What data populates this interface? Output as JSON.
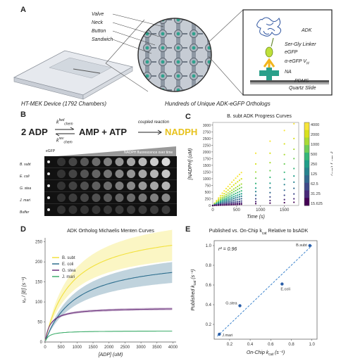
{
  "panels": {
    "A": "A",
    "B": "B",
    "C": "C",
    "D": "D",
    "E": "E"
  },
  "panelA": {
    "device_caption": "HT-MEK Device (1792 Chambers)",
    "orthologs_caption": "Hundreds of Unique ADK-eGFP Orthologs",
    "callouts": [
      "Valve",
      "Neck",
      "Button",
      "Sandwich"
    ],
    "stack_labels": [
      "ADK",
      "Ser-Gly Linker",
      "eGFP",
      "α-eGFP V",
      "NA",
      "PDMS",
      "Quartz Slide"
    ],
    "stack_sub": "H"
  },
  "panelB": {
    "reaction_left": "2 ADP",
    "reaction_right": "AMP + ATP",
    "k_fwd": "k",
    "k_fwd_sup": "fwd",
    "k_fwd_sub": "chem",
    "k_rev": "k",
    "k_rev_sup": "rev",
    "k_rev_sub": "chem",
    "coupled": "coupled reaction",
    "product": "NADPH",
    "egfp": "eGFP",
    "time_label": "NADPH fluorescence over time",
    "rows": [
      "B. subt",
      "E. coli",
      "G. stea",
      "J. mari",
      "Buffer"
    ]
  },
  "chart_data": [
    {
      "type": "scatter",
      "title": "B. subt ADK Progress Curves",
      "xlabel": "Time (s)",
      "ylabel": "[NADPH] (uM)",
      "xlim": [
        0,
        1800
      ],
      "ylim": [
        0,
        3100
      ],
      "xticks": [
        0,
        500,
        1000,
        1500
      ],
      "yticks": [
        0,
        250,
        500,
        750,
        1000,
        1250,
        1500,
        1750,
        2000,
        2250,
        2500,
        2750,
        3000
      ],
      "colorbar_label": "[ADP] (uM)",
      "colorbar_ticks": [
        "4000",
        "2000",
        "1000",
        "500",
        "250",
        "125",
        "62.5",
        "31.25",
        "15.625"
      ],
      "colors": [
        "#f7e53a",
        "#d8e21e",
        "#a9db35",
        "#6ece58",
        "#35b779",
        "#1f9e89",
        "#26828e",
        "#31688e",
        "#3e4989",
        "#482878",
        "#440154"
      ],
      "dense_times": [
        0,
        40,
        80,
        120,
        160,
        200,
        240,
        280,
        320,
        360,
        400,
        440,
        480,
        520,
        560,
        600
      ],
      "sparse_times": [
        900,
        1200,
        1500,
        1700
      ],
      "series": [
        {
          "values": [
            0,
            90,
            185,
            280,
            370,
            460,
            545,
            630,
            710,
            790,
            870,
            945,
            1020,
            1090,
            1160,
            1230
          ],
          "sparse": [
            1950,
            2400,
            2800,
            3050
          ]
        },
        {
          "values": [
            0,
            75,
            150,
            225,
            300,
            370,
            440,
            510,
            575,
            640,
            705,
            765,
            825,
            885,
            940,
            995
          ],
          "sparse": [
            1550,
            1950,
            2300,
            2500
          ]
        },
        {
          "values": [
            0,
            60,
            120,
            180,
            240,
            300,
            355,
            410,
            465,
            515,
            565,
            615,
            660,
            710,
            755,
            800
          ],
          "sparse": [
            1250,
            1600,
            1900,
            2100
          ]
        },
        {
          "values": [
            0,
            50,
            100,
            150,
            200,
            248,
            295,
            340,
            385,
            430,
            472,
            515,
            555,
            595,
            635,
            672
          ],
          "sparse": [
            1020,
            1300,
            1550,
            1750
          ]
        },
        {
          "values": [
            0,
            40,
            80,
            120,
            160,
            200,
            238,
            275,
            312,
            348,
            382,
            416,
            450,
            482,
            514,
            545
          ],
          "sparse": [
            820,
            1050,
            1240,
            1380
          ]
        },
        {
          "values": [
            0,
            32,
            64,
            96,
            128,
            160,
            190,
            220,
            250,
            278,
            306,
            333,
            360,
            386,
            412,
            437
          ],
          "sparse": [
            650,
            830,
            980,
            1100
          ]
        },
        {
          "values": [
            0,
            25,
            50,
            75,
            100,
            125,
            149,
            172,
            195,
            218,
            240,
            262,
            283,
            304,
            325,
            345
          ],
          "sparse": [
            520,
            660,
            780,
            870
          ]
        },
        {
          "values": [
            0,
            18,
            36,
            54,
            72,
            90,
            108,
            125,
            142,
            159,
            175,
            191,
            207,
            222,
            237,
            252
          ],
          "sparse": [
            380,
            480,
            570,
            640
          ]
        },
        {
          "values": [
            0,
            12,
            24,
            36,
            48,
            60,
            72,
            83,
            94,
            105,
            116,
            126,
            136,
            146,
            156,
            166
          ],
          "sparse": [
            250,
            320,
            380,
            430
          ]
        },
        {
          "values": [
            0,
            7,
            14,
            21,
            28,
            35,
            42,
            49,
            55,
            61,
            67,
            73,
            79,
            85,
            91,
            96
          ],
          "sparse": [
            145,
            185,
            220,
            250
          ]
        },
        {
          "values": [
            0,
            3,
            6,
            9,
            12,
            15,
            18,
            21,
            24,
            27,
            30,
            33,
            36,
            39,
            42,
            45
          ],
          "sparse": [
            68,
            88,
            105,
            120
          ]
        }
      ]
    },
    {
      "type": "line",
      "title": "ADK Ortholog Michaelis Menten Curves",
      "xlabel": "[ADP] (uM)",
      "ylabel": "v₀ / [E] (s⁻¹)",
      "xlim": [
        0,
        4100
      ],
      "ylim": [
        0,
        260
      ],
      "xticks": [
        0,
        500,
        1000,
        1500,
        2000,
        2500,
        3000,
        3500,
        4000
      ],
      "yticks": [
        0,
        50,
        100,
        150,
        200,
        250
      ],
      "series": [
        {
          "name": "B. subt",
          "color": "#f2e13c",
          "kcat": 290,
          "km": 800,
          "band": 0.16
        },
        {
          "name": "E. coli",
          "color": "#2d6e8e",
          "kcat": 215,
          "km": 950,
          "band": 0.15
        },
        {
          "name": "G. stea",
          "color": "#6a2f7b",
          "kcat": 86,
          "km": 160,
          "band": 0.04
        },
        {
          "name": "J. mari",
          "color": "#3fae6c",
          "kcat": 28,
          "km": 110,
          "band": 0.03
        }
      ]
    },
    {
      "type": "scatter",
      "title": "Published vs. On-Chip k",
      "title_sub": "cat",
      "title_tail": " Relative to bsADK",
      "xlabel": "On-Chip k",
      "xlabel_sub": "cat",
      "xlabel_tail": " (s⁻¹)",
      "ylabel": "Published k",
      "ylabel_sub": "cat",
      "ylabel_tail": " (s⁻¹)",
      "annotation": "r² = 0.96",
      "xlim": [
        0.05,
        1.05
      ],
      "ylim": [
        0.05,
        1.05
      ],
      "xticks": [
        0.2,
        0.4,
        0.6,
        0.8,
        1.0
      ],
      "yticks": [
        0.2,
        0.4,
        0.6,
        0.8,
        1.0
      ],
      "point_color": "#2a5ea8",
      "points": [
        {
          "label": "B.subt",
          "x": 0.98,
          "y": 1.0
        },
        {
          "label": "E.coli",
          "x": 0.71,
          "y": 0.61
        },
        {
          "label": "G.stea",
          "x": 0.3,
          "y": 0.39
        },
        {
          "label": "J.mari",
          "x": 0.1,
          "y": 0.1
        }
      ]
    }
  ]
}
